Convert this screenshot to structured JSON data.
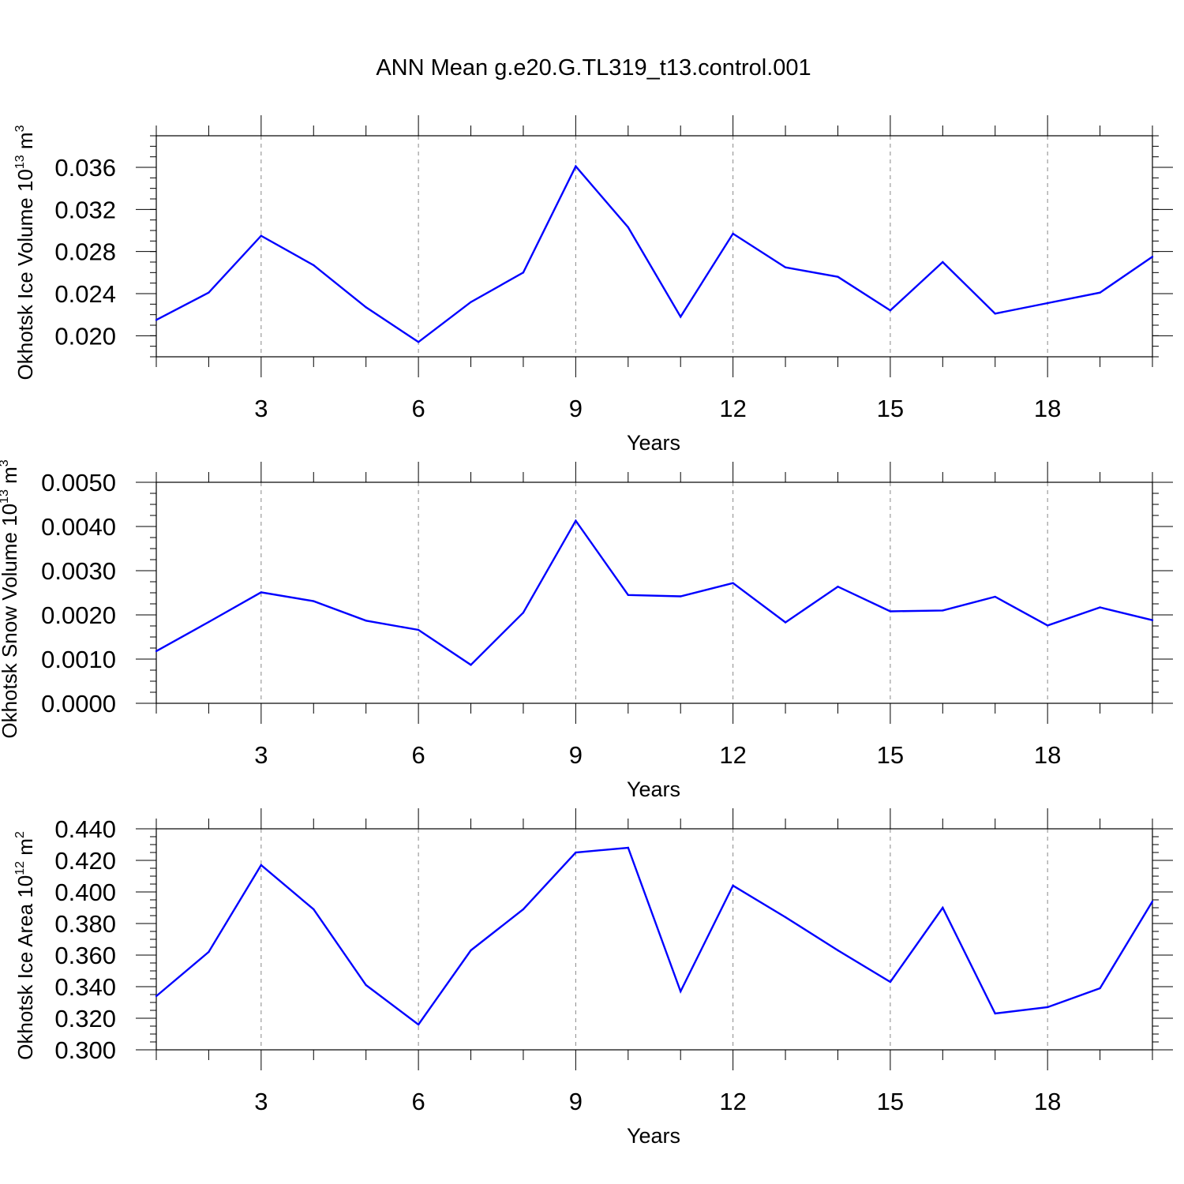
{
  "title": "ANN Mean g.e20.G.TL319_t13.control.001",
  "colors": {
    "series": "#0000ff",
    "axis": "#000000",
    "grid": "#888888"
  },
  "chart_data": [
    {
      "type": "line",
      "ylabel_main": "Okhotsk Ice Volume 10",
      "ylabel_exp": "13",
      "ylabel_unit": " m",
      "ylabel_unit_exp": "3",
      "xlabel": "Years",
      "xlim": [
        1,
        20
      ],
      "ylim": [
        0.018,
        0.039
      ],
      "yticks": [
        0.02,
        0.024,
        0.028,
        0.032,
        0.036
      ],
      "yminor": 0.001,
      "ydecimals": 3,
      "xticks": [
        3,
        6,
        9,
        12,
        15,
        18
      ],
      "x": [
        1,
        2,
        3,
        4,
        5,
        6,
        7,
        8,
        9,
        10,
        11,
        12,
        13,
        14,
        15,
        16,
        17,
        18,
        19,
        20
      ],
      "values": [
        0.0215,
        0.0241,
        0.0295,
        0.0267,
        0.0227,
        0.0194,
        0.0232,
        0.026,
        0.0361,
        0.0303,
        0.0218,
        0.0297,
        0.0265,
        0.0256,
        0.0224,
        0.027,
        0.0221,
        0.0231,
        0.0241,
        0.0275
      ]
    },
    {
      "type": "line",
      "ylabel_main": "Okhotsk Snow Volume 10",
      "ylabel_exp": "13",
      "ylabel_unit": " m",
      "ylabel_unit_exp": "3",
      "xlabel": "Years",
      "xlim": [
        1,
        20
      ],
      "ylim": [
        0.0,
        0.005
      ],
      "yticks": [
        0.0,
        0.001,
        0.002,
        0.003,
        0.004,
        0.005
      ],
      "yminor": 0.00025,
      "ydecimals": 4,
      "xticks": [
        3,
        6,
        9,
        12,
        15,
        18
      ],
      "x": [
        1,
        2,
        3,
        4,
        5,
        6,
        7,
        8,
        9,
        10,
        11,
        12,
        13,
        14,
        15,
        16,
        17,
        18,
        19,
        20
      ],
      "values": [
        0.00118,
        0.00184,
        0.00251,
        0.00231,
        0.00187,
        0.00166,
        0.00087,
        0.00205,
        0.00413,
        0.00245,
        0.00242,
        0.00272,
        0.00183,
        0.00264,
        0.00208,
        0.0021,
        0.00241,
        0.00176,
        0.00217,
        0.00188
      ]
    },
    {
      "type": "line",
      "ylabel_main": "Okhotsk Ice Area 10",
      "ylabel_exp": "12",
      "ylabel_unit": " m",
      "ylabel_unit_exp": "2",
      "xlabel": "Years",
      "xlim": [
        1,
        20
      ],
      "ylim": [
        0.3,
        0.44
      ],
      "yticks": [
        0.3,
        0.32,
        0.34,
        0.36,
        0.38,
        0.4,
        0.42,
        0.44
      ],
      "yminor": 0.005,
      "ydecimals": 3,
      "xticks": [
        3,
        6,
        9,
        12,
        15,
        18
      ],
      "x": [
        1,
        2,
        3,
        4,
        5,
        6,
        7,
        8,
        9,
        10,
        11,
        12,
        13,
        14,
        15,
        16,
        17,
        18,
        19,
        20
      ],
      "values": [
        0.334,
        0.362,
        0.417,
        0.389,
        0.341,
        0.316,
        0.363,
        0.389,
        0.425,
        0.428,
        0.337,
        0.404,
        0.384,
        0.363,
        0.343,
        0.39,
        0.323,
        0.327,
        0.339,
        0.394
      ]
    }
  ]
}
